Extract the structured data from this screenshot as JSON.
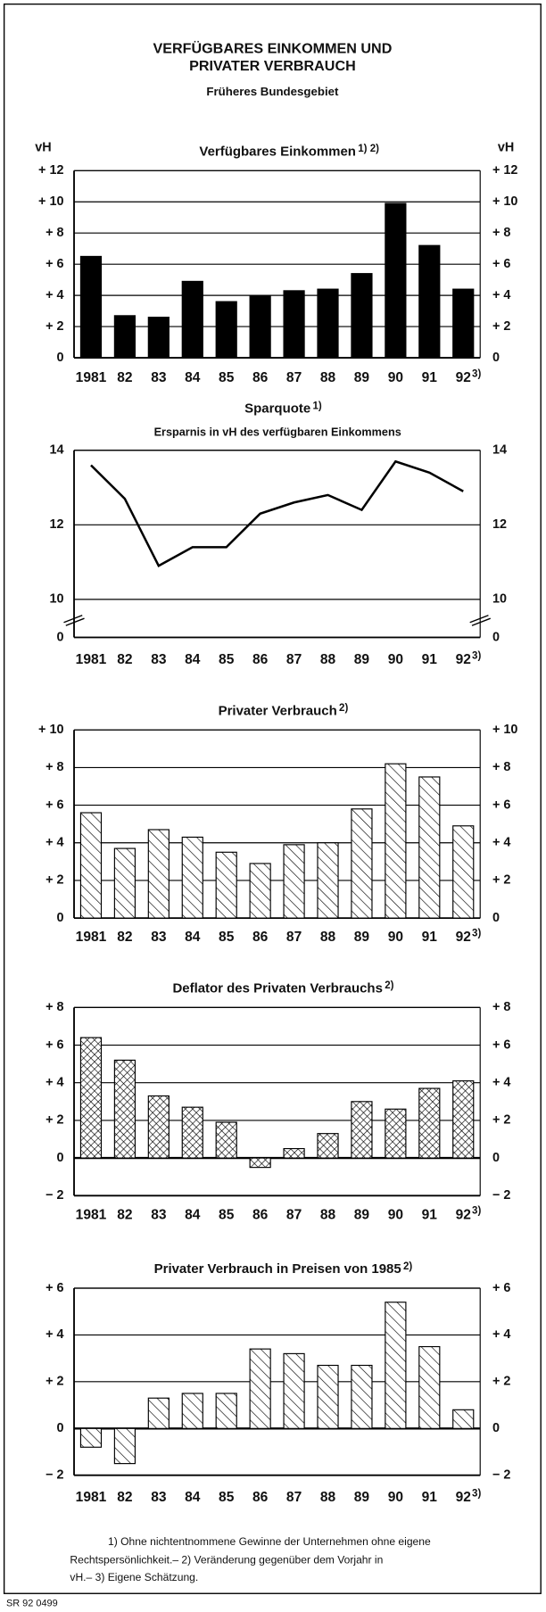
{
  "header": {
    "title": [
      "VERFÜGBARES EINKOMMEN UND",
      "PRIVATER VERBRAUCH"
    ],
    "subtitle": "Früheres Bundesgebiet"
  },
  "chart_data": [
    {
      "type": "bar",
      "pattern": "solid",
      "color": "#000000",
      "title": "Verfügbares Einkommen",
      "title_note": "1) 2)",
      "unit": "vH",
      "categories": [
        "1981",
        "82",
        "83",
        "84",
        "85",
        "86",
        "87",
        "88",
        "89",
        "90",
        "91",
        "92"
      ],
      "category_note": "3)",
      "values": [
        6.5,
        2.7,
        2.6,
        4.9,
        3.6,
        4.0,
        4.3,
        4.4,
        5.4,
        9.9,
        7.2,
        4.4
      ],
      "ylim": [
        0,
        12
      ],
      "yticks": [
        0,
        {
          "value": 2,
          "label": "+ 2"
        },
        {
          "value": 4,
          "label": "+ 4"
        },
        {
          "value": 6,
          "label": "+ 6"
        },
        {
          "value": 8,
          "label": "+ 8"
        },
        {
          "value": 10,
          "label": "+ 10"
        },
        {
          "value": 12,
          "label": "+ 12"
        }
      ],
      "grid": true
    },
    {
      "type": "line",
      "color": "#000000",
      "title": "Sparquote",
      "title_note": "1)",
      "subtitle": "Ersparnis in vH des verfügbaren Einkommens",
      "categories": [
        "1981",
        "82",
        "83",
        "84",
        "85",
        "86",
        "87",
        "88",
        "89",
        "90",
        "91",
        "92"
      ],
      "category_note": "3)",
      "values": [
        13.6,
        12.7,
        10.9,
        11.4,
        11.4,
        12.3,
        12.6,
        12.8,
        12.4,
        13.7,
        13.4,
        12.9
      ],
      "ylim": [
        10,
        14
      ],
      "yticks": [
        0,
        10,
        12,
        14
      ],
      "axis_break": true,
      "grid": true
    },
    {
      "type": "bar",
      "pattern": "hatch",
      "color": "#000000",
      "title": "Privater Verbrauch",
      "title_note": "2)",
      "categories": [
        "1981",
        "82",
        "83",
        "84",
        "85",
        "86",
        "87",
        "88",
        "89",
        "90",
        "91",
        "92"
      ],
      "category_note": "3)",
      "values": [
        5.6,
        3.7,
        4.7,
        4.3,
        3.5,
        2.9,
        3.9,
        4.0,
        5.8,
        8.2,
        7.5,
        4.9
      ],
      "ylim": [
        0,
        10
      ],
      "yticks": [
        0,
        {
          "value": 2,
          "label": "+ 2"
        },
        {
          "value": 4,
          "label": "+ 4"
        },
        {
          "value": 6,
          "label": "+ 6"
        },
        {
          "value": 8,
          "label": "+ 8"
        },
        {
          "value": 10,
          "label": "+ 10"
        }
      ],
      "grid": true
    },
    {
      "type": "bar",
      "pattern": "crosshatch",
      "color": "#000000",
      "title": "Deflator des Privaten Verbrauchs",
      "title_note": "2)",
      "categories": [
        "1981",
        "82",
        "83",
        "84",
        "85",
        "86",
        "87",
        "88",
        "89",
        "90",
        "91",
        "92"
      ],
      "category_note": "3)",
      "values": [
        6.4,
        5.2,
        3.3,
        2.7,
        1.9,
        -0.5,
        0.5,
        1.3,
        3.0,
        2.6,
        3.7,
        4.1
      ],
      "ylim": [
        -2,
        8
      ],
      "yticks": [
        {
          "value": -2,
          "label": "− 2"
        },
        0,
        {
          "value": 2,
          "label": "+ 2"
        },
        {
          "value": 4,
          "label": "+ 4"
        },
        {
          "value": 6,
          "label": "+ 6"
        },
        {
          "value": 8,
          "label": "+ 8"
        }
      ],
      "grid": true
    },
    {
      "type": "bar",
      "pattern": "hatch",
      "color": "#000000",
      "title": "Privater Verbrauch in Preisen von 1985",
      "title_note": "2)",
      "categories": [
        "1981",
        "82",
        "83",
        "84",
        "85",
        "86",
        "87",
        "88",
        "89",
        "90",
        "91",
        "92"
      ],
      "category_note": "3)",
      "values": [
        -0.8,
        -1.5,
        1.3,
        1.5,
        1.5,
        3.4,
        3.2,
        2.7,
        2.7,
        5.4,
        3.5,
        0.8
      ],
      "ylim": [
        -2,
        6
      ],
      "yticks": [
        {
          "value": -2,
          "label": "− 2"
        },
        0,
        {
          "value": 2,
          "label": "+ 2"
        },
        {
          "value": 4,
          "label": "+ 4"
        },
        {
          "value": 6,
          "label": "+ 6"
        }
      ],
      "grid": true
    }
  ],
  "footnotes": [
    "1) Ohne nichtentnommene Gewinne der Unternehmen ohne eigene",
    "Rechtspersönlichkeit.– 2) Veränderung gegenüber dem Vorjahr in",
    "vH.– 3) Eigene Schätzung."
  ],
  "code": "SR 92 0499"
}
